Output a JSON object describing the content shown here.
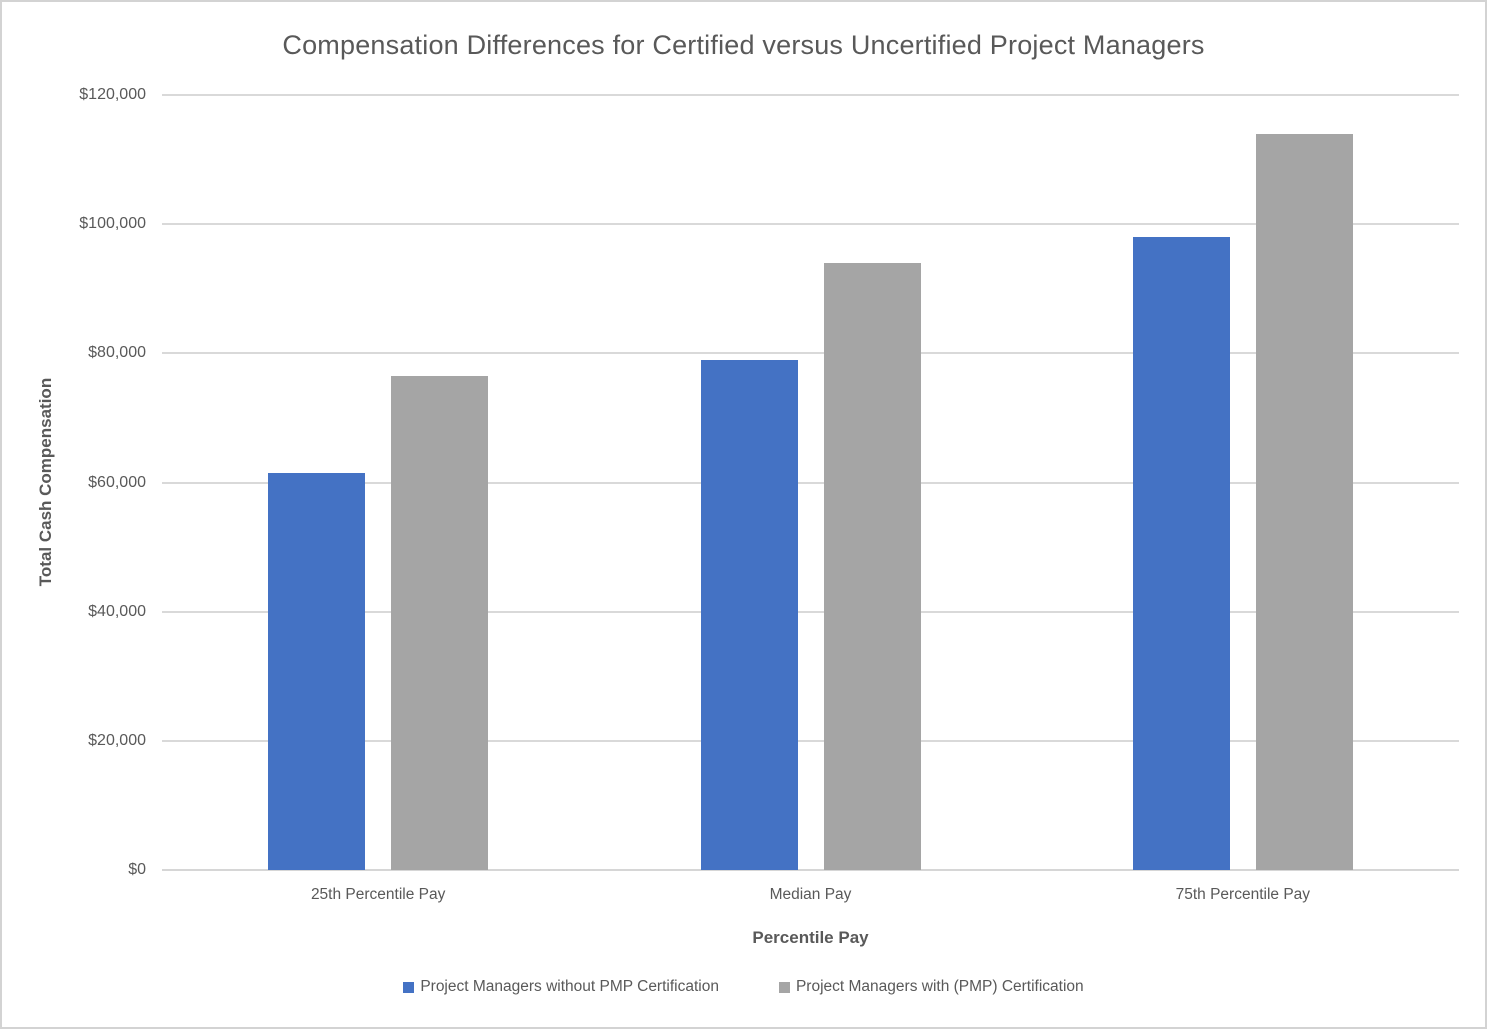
{
  "chart_data": {
    "type": "bar",
    "title": "Compensation Differences for Certified versus Uncertified Project Managers",
    "categories": [
      "25th Percentile Pay",
      "Median Pay",
      "75th Percentile Pay"
    ],
    "series": [
      {
        "name": "Project Managers without PMP Certification",
        "color": "#4472C4",
        "values": [
          61500,
          79000,
          98000
        ]
      },
      {
        "name": "Project Managers with (PMP) Certification",
        "color": "#A5A5A5",
        "values": [
          76500,
          94000,
          114000
        ]
      }
    ],
    "xlabel": "Percentile Pay",
    "ylabel": "Total Cash Compensation",
    "ylim": [
      0,
      120000
    ],
    "ytick_step": 20000,
    "ytick_labels": [
      "$0",
      "$20,000",
      "$40,000",
      "$60,000",
      "$80,000",
      "$100,000",
      "$120,000"
    ],
    "grid": true,
    "legend_position": "bottom",
    "colors": {
      "text": "#595959",
      "gridline": "#D9D9D9",
      "background": "#FFFFFF"
    }
  }
}
